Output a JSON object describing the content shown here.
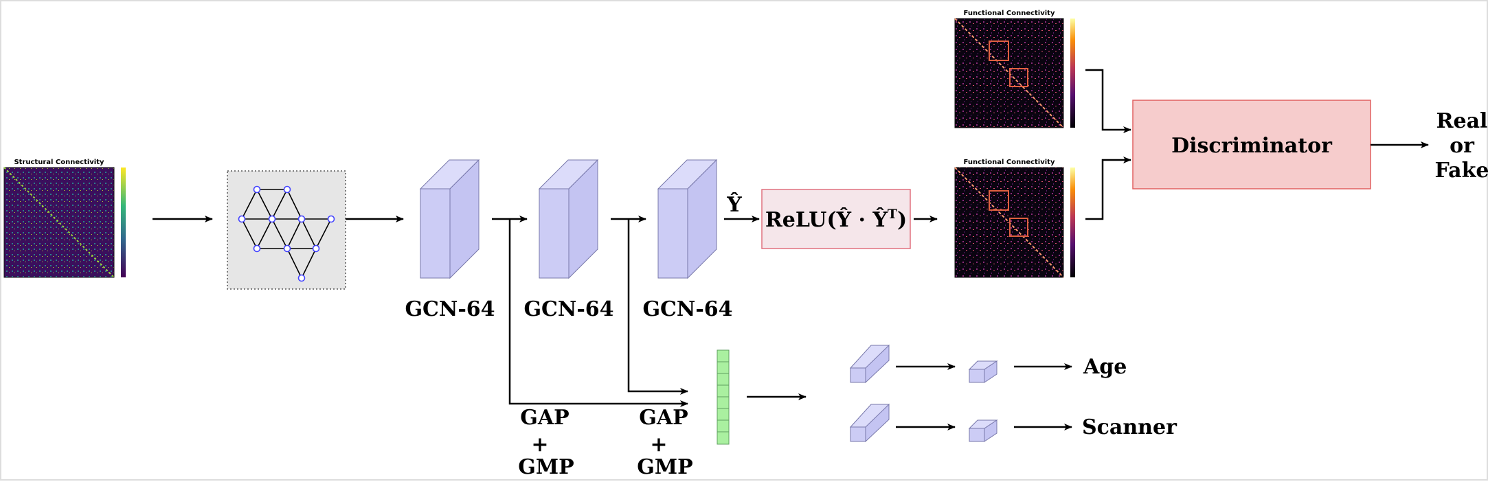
{
  "inputs": {
    "structural_title": "Structural Connectivity",
    "functional_title": "Functional Connectivity"
  },
  "gcn_labels": [
    "GCN-64",
    "GCN-64",
    "GCN-64"
  ],
  "yhat_label": "Ŷ",
  "relu_label": "ReLU(Ŷ · Ŷ",
  "relu_sup": "T",
  "relu_close": ")",
  "pool_labels": [
    {
      "line1": "GAP",
      "line2": "+",
      "line3": "GMP"
    },
    {
      "line1": "GAP",
      "line2": "+",
      "line3": "GMP"
    }
  ],
  "discriminator_label": "Discriminator",
  "output_label": {
    "line1": "Real",
    "line2": "or",
    "line3": "Fake"
  },
  "heads": [
    "Age",
    "Scanner"
  ],
  "colors": {
    "gcn_block": "#ccccf5",
    "relu_box": "#f5e6ea",
    "relu_border": "#e0707f",
    "discriminator": "#f6cccc",
    "discriminator_border": "#e06060",
    "feature_vector": "#aaf0a0",
    "node": "#4444ff"
  }
}
